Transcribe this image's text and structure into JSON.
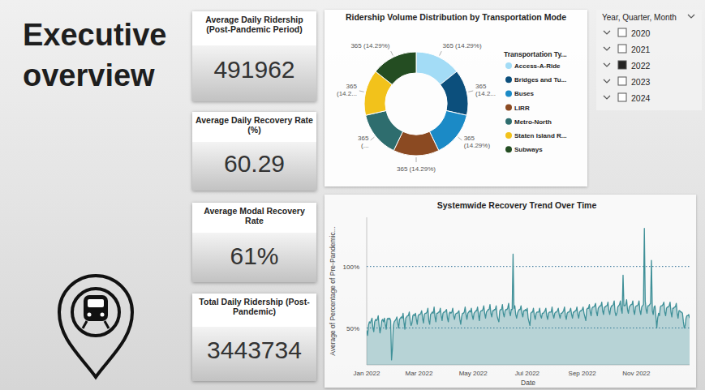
{
  "header": {
    "title": "Executive overview"
  },
  "kpis": [
    {
      "title": "Average Daily Ridership (Post-Pandemic Period)",
      "value": 491962
    },
    {
      "title": "Average Daily Recovery Rate (%)",
      "value": 60.29
    },
    {
      "title": "Average Modal Recovery Rate",
      "value": 61,
      "label": "61%"
    },
    {
      "title": "Total Daily Ridership (Post-Pandemic)",
      "value": 3443734
    }
  ],
  "slicer": {
    "title": "Year, Quarter, Month",
    "items": [
      {
        "label": "2020",
        "selected": false
      },
      {
        "label": "2021",
        "selected": false
      },
      {
        "label": "2022",
        "selected": true
      },
      {
        "label": "2023",
        "selected": false
      },
      {
        "label": "2024",
        "selected": false
      }
    ]
  },
  "chart_data": [
    {
      "type": "donut",
      "title": "Ridership Volume Distribution by Transportation Mode",
      "legend_title": "Transportation Ty...",
      "legend": "right",
      "data_labels": true,
      "categories": [
        "Access-A-Ride",
        "Bridges and Tu...",
        "Buses",
        "LIRR",
        "Metro-North",
        "Staten Island R...",
        "Subways"
      ],
      "values": [
        365,
        365,
        365,
        365,
        365,
        365,
        365
      ],
      "value_labels": [
        "365 (14.29%)",
        "365 (14.2...",
        "365 (14.29%)",
        "365 (14.29%)",
        "365 (...",
        "365 (14.2...",
        "365 (14.29%)"
      ],
      "colors": [
        "#a3dcf6",
        "#0c4f7c",
        "#1b8ac6",
        "#8b4a22",
        "#2e6d6e",
        "#f2c21b",
        "#244d22"
      ]
    },
    {
      "type": "area",
      "title": "Systemwide Recovery Trend Over Time",
      "x_label": "Date",
      "y_label": "Average of Percentage of Pre-Pandemic...",
      "color": "#3f9098",
      "grid": true,
      "ylim": [
        20,
        140
      ],
      "yticks": [
        {
          "value": 50,
          "label": "50%"
        },
        {
          "value": 100,
          "label": "100%"
        }
      ],
      "categories": [
        "Jan 2022",
        null,
        null,
        null,
        null,
        null,
        null,
        null,
        null,
        null,
        null,
        null,
        null,
        null,
        null,
        null,
        null,
        null,
        null,
        null,
        null,
        null,
        null,
        null,
        null,
        null,
        null,
        null,
        null,
        null,
        null,
        null,
        null,
        null,
        null,
        null,
        null,
        null,
        null,
        null,
        null,
        null,
        null,
        null,
        null,
        null,
        null,
        null,
        null,
        null,
        null,
        null,
        null,
        null,
        null,
        null,
        null,
        null,
        null,
        "Mar 2022",
        null,
        null,
        null,
        null,
        null,
        null,
        null,
        null,
        null,
        null,
        null,
        null,
        null,
        null,
        null,
        null,
        null,
        null,
        null,
        null,
        null,
        null,
        null,
        null,
        null,
        null,
        null,
        null,
        null,
        null,
        null,
        null,
        null,
        null,
        null,
        null,
        null,
        null,
        null,
        null,
        null,
        null,
        null,
        null,
        null,
        null,
        null,
        null,
        null,
        null,
        null,
        null,
        null,
        null,
        null,
        null,
        null,
        null,
        null,
        null,
        "May 2022",
        null,
        null,
        null,
        null,
        null,
        null,
        null,
        null,
        null,
        null,
        null,
        null,
        null,
        null,
        null,
        null,
        null,
        null,
        null,
        null,
        null,
        null,
        null,
        null,
        null,
        null,
        null,
        null,
        null,
        null,
        null,
        null,
        null,
        null,
        null,
        null,
        null,
        null,
        null,
        null,
        null,
        null,
        null,
        null,
        null,
        null,
        null,
        null,
        null,
        null,
        null,
        null,
        null,
        null,
        null,
        null,
        null,
        null,
        null,
        null,
        "Jul 2022",
        null,
        null,
        null,
        null,
        null,
        null,
        null,
        null,
        null,
        null,
        null,
        null,
        null,
        null,
        null,
        null,
        null,
        null,
        null,
        null,
        null,
        null,
        null,
        null,
        null,
        null,
        null,
        null,
        null,
        null,
        null,
        null,
        null,
        null,
        null,
        null,
        null,
        null,
        null,
        null,
        null,
        null,
        null,
        null,
        null,
        null,
        null,
        null,
        null,
        null,
        null,
        null,
        null,
        null,
        null,
        null,
        null,
        null,
        null,
        null,
        null,
        "Sep 2022",
        null,
        null,
        null,
        null,
        null,
        null,
        null,
        null,
        null,
        null,
        null,
        null,
        null,
        null,
        null,
        null,
        null,
        null,
        null,
        null,
        null,
        null,
        null,
        null,
        null,
        null,
        null,
        null,
        null,
        null,
        null,
        null,
        null,
        null,
        null,
        null,
        null,
        null,
        null,
        null,
        null,
        null,
        null,
        null,
        null,
        null,
        null,
        null,
        null,
        null,
        null,
        null,
        null,
        null,
        null,
        null,
        null,
        null,
        null,
        null,
        "Nov 2022",
        null,
        null,
        null,
        null,
        null,
        null,
        null,
        null,
        null,
        null,
        null,
        null,
        null,
        null,
        null,
        null,
        null,
        null,
        null,
        null,
        null,
        null,
        null,
        null,
        null,
        null,
        null,
        null,
        null,
        null,
        null,
        null,
        null,
        null,
        null,
        null,
        null,
        null,
        null,
        null,
        null,
        null,
        null,
        null,
        null,
        null,
        null,
        null,
        null,
        null,
        null,
        null,
        null,
        null,
        null,
        null,
        null,
        null,
        null,
        null
      ],
      "values": [
        48,
        44,
        52,
        55,
        54,
        56,
        58,
        50,
        47,
        55,
        57,
        56,
        57,
        60,
        52,
        46,
        50,
        56,
        57,
        55,
        58,
        53,
        49,
        57,
        58,
        57,
        58,
        56,
        24,
        33,
        52,
        55,
        56,
        57,
        59,
        54,
        50,
        57,
        58,
        59,
        58,
        62,
        55,
        49,
        58,
        59,
        60,
        60,
        63,
        56,
        52,
        54,
        60,
        61,
        60,
        62,
        57,
        53,
        60,
        61,
        61,
        62,
        64,
        58,
        54,
        61,
        62,
        62,
        63,
        66,
        56,
        53,
        61,
        62,
        63,
        62,
        67,
        59,
        55,
        62,
        62,
        63,
        63,
        66,
        60,
        56,
        62,
        63,
        63,
        64,
        65,
        58,
        55,
        62,
        63,
        62,
        63,
        66,
        60,
        57,
        61,
        62,
        62,
        63,
        64,
        57,
        53,
        59,
        62,
        62,
        63,
        67,
        61,
        57,
        62,
        63,
        64,
        63,
        66,
        60,
        57,
        62,
        63,
        64,
        64,
        67,
        61,
        56,
        63,
        64,
        64,
        65,
        68,
        62,
        58,
        63,
        64,
        65,
        65,
        69,
        62,
        59,
        64,
        64,
        65,
        65,
        68,
        60,
        57,
        55,
        64,
        65,
        65,
        69,
        62,
        59,
        64,
        65,
        65,
        66,
        70,
        63,
        60,
        65,
        65,
        110,
        66,
        68,
        61,
        58,
        62,
        64,
        65,
        65,
        68,
        62,
        59,
        64,
        64,
        65,
        64,
        66,
        58,
        55,
        52,
        62,
        63,
        63,
        66,
        60,
        57,
        62,
        63,
        63,
        63,
        66,
        60,
        58,
        62,
        62,
        63,
        64,
        66,
        60,
        57,
        62,
        63,
        63,
        63,
        67,
        61,
        58,
        62,
        63,
        63,
        64,
        66,
        61,
        58,
        62,
        62,
        63,
        64,
        67,
        60,
        57,
        62,
        63,
        63,
        64,
        66,
        61,
        58,
        63,
        63,
        64,
        64,
        67,
        61,
        58,
        63,
        64,
        64,
        65,
        67,
        62,
        59,
        56,
        65,
        66,
        66,
        69,
        63,
        60,
        66,
        67,
        67,
        68,
        70,
        63,
        60,
        66,
        67,
        68,
        68,
        71,
        64,
        61,
        67,
        67,
        68,
        68,
        71,
        64,
        61,
        66,
        68,
        68,
        69,
        72,
        63,
        60,
        62,
        67,
        68,
        69,
        72,
        65,
        62,
        93,
        68,
        68,
        69,
        73,
        65,
        62,
        67,
        68,
        69,
        69,
        72,
        64,
        61,
        67,
        68,
        68,
        69,
        72,
        64,
        61,
        67,
        68,
        69,
        131,
        72,
        65,
        62,
        68,
        68,
        69,
        70,
        105,
        64,
        61,
        67,
        68,
        60,
        50,
        58,
        62,
        60,
        67,
        68,
        68,
        69,
        71,
        63,
        60,
        66,
        67,
        67,
        68,
        71,
        63,
        59,
        66,
        66,
        67,
        67,
        70,
        62,
        58,
        64,
        64,
        63,
        63,
        62,
        55,
        50,
        52,
        58,
        60,
        60,
        61,
        58
      ]
    }
  ]
}
